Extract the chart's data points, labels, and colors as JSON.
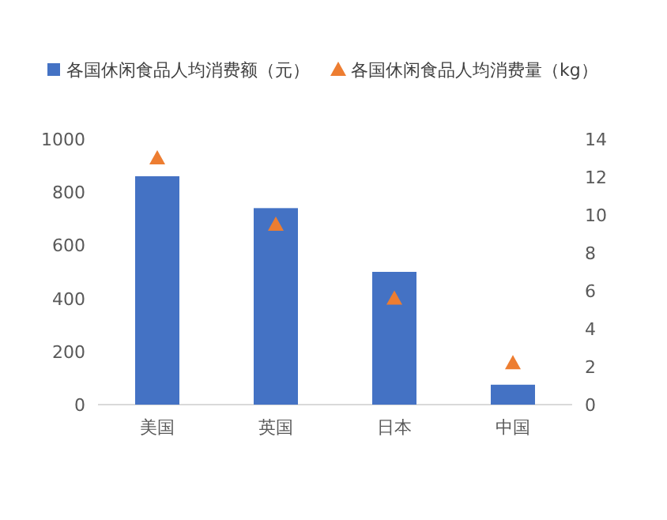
{
  "chart_data": {
    "type": "bar",
    "categories": [
      "美国",
      "英国",
      "日本",
      "中国"
    ],
    "series": [
      {
        "name": "各国休闲食品人均消费额（元）",
        "color": "#4472c4",
        "values": [
          860,
          740,
          500,
          75
        ]
      },
      {
        "name": "各国休闲食品人均消费量（kg）",
        "color": "#ed7d31",
        "type": "scatter",
        "axis": "y2",
        "marker": "triangle",
        "values": [
          13.0,
          9.5,
          5.6,
          2.2
        ]
      }
    ],
    "ylim": [
      0,
      1000
    ],
    "yticks": [
      0,
      200,
      400,
      600,
      800,
      1000
    ],
    "y2lim": [
      0,
      14
    ],
    "y2ticks": [
      0,
      2,
      4,
      6,
      8,
      10,
      12,
      14
    ],
    "grid": false,
    "legend": "top"
  }
}
